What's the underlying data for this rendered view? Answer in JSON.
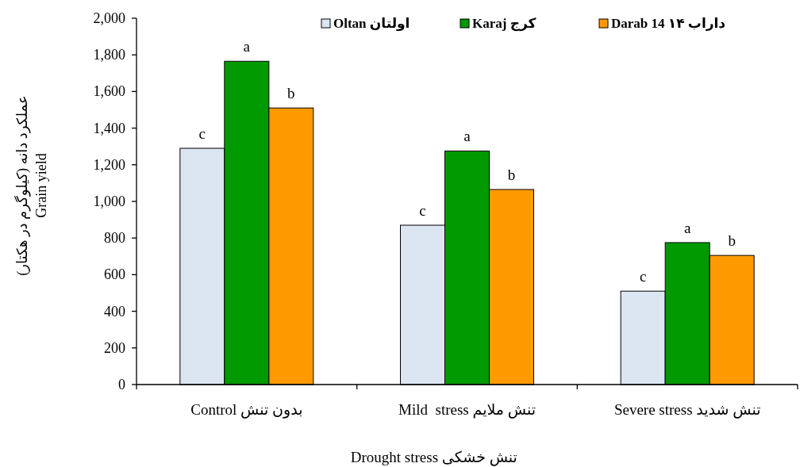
{
  "chart_data": {
    "type": "bar",
    "categories": [
      "Control بدون تنش",
      "Mild  stress تنش ملایم",
      "Severe stress تنش شدید"
    ],
    "xlabel": "Drought stress تنش خشکی",
    "ylabel": "عملکرد دانه (کیلوگرم در هکتار)\nGrain yield",
    "series": [
      {
        "name": "Oltan اولتان",
        "color": "#dce6f2",
        "values": [
          1290,
          870,
          510
        ],
        "value_labels": [
          "c",
          "c",
          "c"
        ]
      },
      {
        "name": "Karaj کرج",
        "color": "#009900",
        "values": [
          1765,
          1275,
          775
        ],
        "value_labels": [
          "a",
          "a",
          "a"
        ]
      },
      {
        "name": "Darab 14 داراب ۱۴",
        "color": "#ff9900",
        "values": [
          1510,
          1065,
          705
        ],
        "value_labels": [
          "b",
          "b",
          "b"
        ]
      }
    ],
    "ylim": [
      0,
      2000
    ],
    "yticks": [
      {
        "value": 0,
        "label": "0"
      },
      {
        "value": 200,
        "label": "200"
      },
      {
        "value": 400,
        "label": "400"
      },
      {
        "value": 600,
        "label": "600"
      },
      {
        "value": 800,
        "label": "800"
      },
      {
        "value": 1000,
        "label": "1,000"
      },
      {
        "value": 1200,
        "label": "1,200"
      },
      {
        "value": 1400,
        "label": "1,400"
      },
      {
        "value": 1600,
        "label": "1,600"
      },
      {
        "value": 1800,
        "label": "1,800"
      },
      {
        "value": 2000,
        "label": "2,000"
      }
    ],
    "legend": "top",
    "grid": false
  }
}
